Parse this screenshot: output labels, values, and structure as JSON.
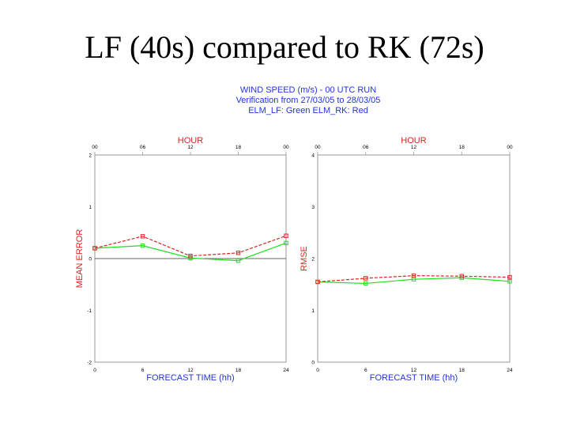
{
  "slide": {
    "title": "LF (40s) compared to RK (72s)"
  },
  "header": {
    "line1": "WIND SPEED (m/s) - 00 UTC RUN",
    "line2": "Verification from 27/03/05 to 28/03/05",
    "line3": "ELM_LF: Green   ELM_RK: Red"
  },
  "colors": {
    "lf": "#22dd22",
    "rk": "#dd2222",
    "header": "#2233dd",
    "axis_title": "#dd2222"
  },
  "chart_data": [
    {
      "type": "line",
      "top_label": "HOUR",
      "top_ticks": [
        "00",
        "06",
        "12",
        "18",
        "00"
      ],
      "x": [
        0,
        6,
        12,
        18,
        24
      ],
      "xlabel": "FORECAST TIME (hh)",
      "ylabel": "MEAN ERROR",
      "yticks": [
        2,
        1,
        0,
        -1,
        -2
      ],
      "xlim": [
        0,
        24
      ],
      "ylim": [
        -2,
        2
      ],
      "zero_line": true,
      "series": [
        {
          "key": "lf",
          "values": [
            0.2,
            0.25,
            0.01,
            -0.04,
            0.3
          ]
        },
        {
          "key": "rk",
          "values": [
            0.2,
            0.43,
            0.05,
            0.11,
            0.44
          ]
        }
      ]
    },
    {
      "type": "line",
      "top_label": "HOUR",
      "top_ticks": [
        "00",
        "06",
        "12",
        "18",
        "00"
      ],
      "x": [
        0,
        6,
        12,
        18,
        24
      ],
      "xlabel": "FORECAST TIME (hh)",
      "ylabel": "RMSE",
      "yticks": [
        4,
        3,
        2,
        1,
        0
      ],
      "xlim": [
        0,
        24
      ],
      "ylim": [
        0,
        4
      ],
      "zero_line": false,
      "series": [
        {
          "key": "lf",
          "values": [
            1.55,
            1.52,
            1.6,
            1.63,
            1.56
          ]
        },
        {
          "key": "rk",
          "values": [
            1.55,
            1.62,
            1.67,
            1.66,
            1.64
          ]
        }
      ]
    }
  ]
}
